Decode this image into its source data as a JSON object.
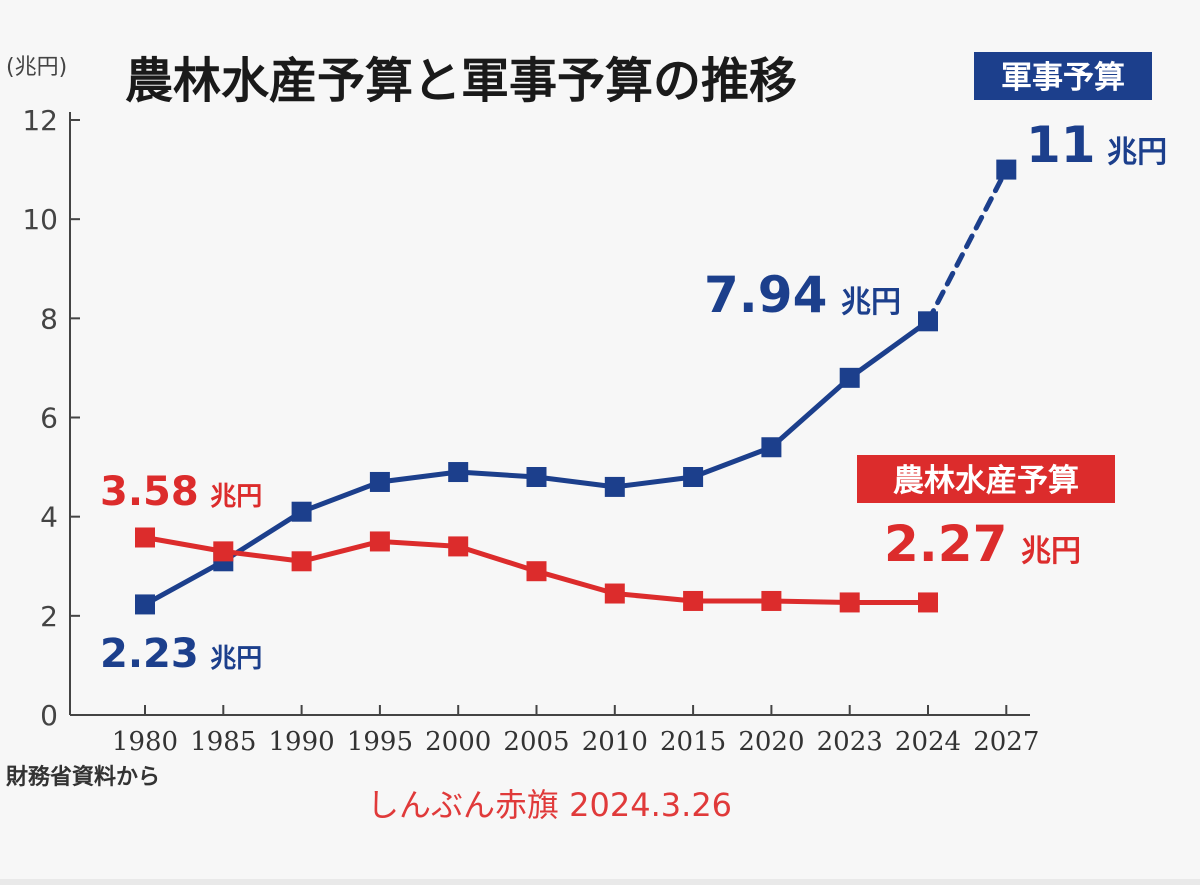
{
  "colors": {
    "military": "#1c3f8c",
    "agriculture": "#dc2c2c",
    "axis": "#444444",
    "title": "#1a1a1a",
    "credit": "#e03a3a",
    "background": "#f7f7f7"
  },
  "chart_data": {
    "type": "line",
    "title": "農林水産予算と軍事予算の推移",
    "unit_label": "(兆円)",
    "source": "財務省資料から",
    "credit": "しんぶん赤旗 2024.3.26",
    "categories": [
      "1980",
      "1985",
      "1990",
      "1995",
      "2000",
      "2005",
      "2010",
      "2015",
      "2020",
      "2023",
      "2024",
      "2027"
    ],
    "ylim": [
      0,
      12
    ],
    "yticks": [
      "0",
      "2",
      "4",
      "6",
      "8",
      "10",
      "12"
    ],
    "grid": false,
    "legend": "inline labels",
    "series": [
      {
        "name": "軍事予算",
        "color_key": "military",
        "values": [
          2.23,
          3.1,
          4.1,
          4.7,
          4.9,
          4.8,
          4.6,
          4.8,
          5.4,
          6.8,
          7.94,
          11.0
        ],
        "dashed_from_index": 10
      },
      {
        "name": "農林水産予算",
        "color_key": "agriculture",
        "values": [
          3.58,
          3.3,
          3.1,
          3.5,
          3.4,
          2.9,
          2.45,
          2.3,
          2.3,
          2.27,
          2.27,
          null
        ]
      }
    ],
    "annotations": [
      {
        "series": 0,
        "index": 0,
        "value_text": "2.23",
        "unit_text": "兆円",
        "anchor": "below-left"
      },
      {
        "series": 0,
        "index": 10,
        "value_text": "7.94",
        "unit_text": "兆円",
        "anchor": "above-left"
      },
      {
        "series": 0,
        "index": 11,
        "value_text": "11",
        "unit_text": "兆円",
        "anchor": "right-top"
      },
      {
        "series": 1,
        "index": 0,
        "value_text": "3.58",
        "unit_text": "兆円",
        "anchor": "above"
      },
      {
        "series": 1,
        "index": 10,
        "value_text": "2.27",
        "unit_text": "兆円",
        "anchor": "above-right"
      }
    ]
  }
}
